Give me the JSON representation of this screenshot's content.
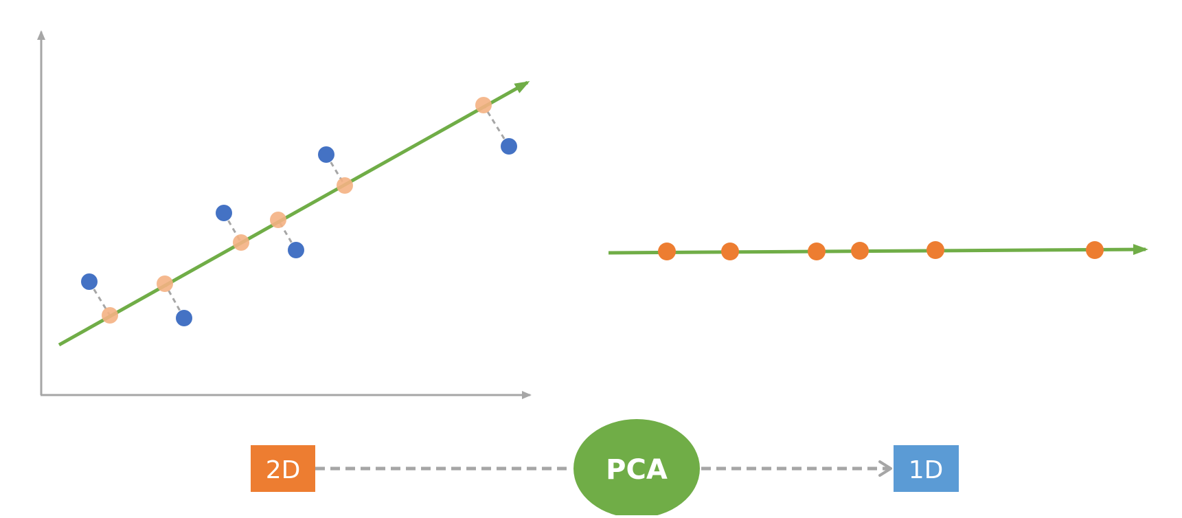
{
  "colors": {
    "axis": "#a6a6a6",
    "line": "#70ad47",
    "original_point": "#4472c4",
    "projected_point_faded": "#f4b183",
    "projected_point": "#ed7d31",
    "projection_link": "#a6a6a6",
    "box_2d": "#ed7d31",
    "box_1d": "#5b9bd5",
    "pca_ellipse": "#70ad47",
    "label_text": "#ffffff"
  },
  "flow": {
    "from_label": "2D",
    "method_label": "PCA",
    "to_label": "1D"
  },
  "icons": {
    "axis_arrow": "arrowhead-icon",
    "line_arrow": "arrowhead-icon",
    "flow_arrow": "open-arrowhead-icon"
  }
}
